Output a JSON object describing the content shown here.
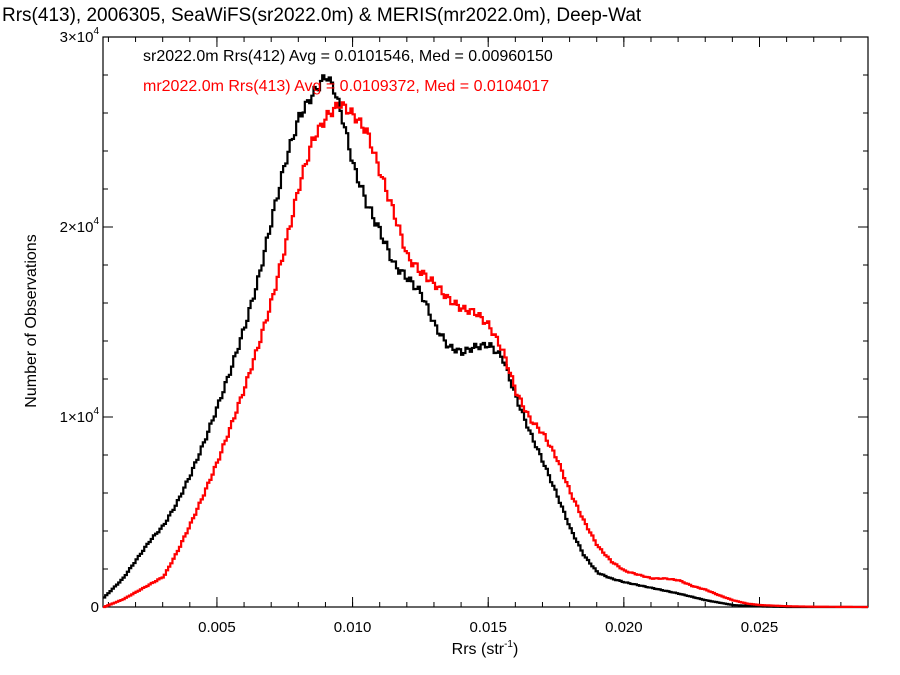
{
  "chart_data": {
    "type": "line",
    "title": "Rrs(413), 2006305, SeaWiFS(sr2022.0m) & MERIS(mr2022.0m), Deep-Wat",
    "xlabel": "Rrs (str",
    "xlabel_sup": "-1",
    "xlabel_close": ")",
    "ylabel": "Number of Observations",
    "xlim": [
      0.0008,
      0.029
    ],
    "ylim": [
      0,
      30000
    ],
    "grid": false,
    "x_ticks": [
      {
        "value": 0.005,
        "label": "0.005"
      },
      {
        "value": 0.01,
        "label": "0.010"
      },
      {
        "value": 0.015,
        "label": "0.015"
      },
      {
        "value": 0.02,
        "label": "0.020"
      },
      {
        "value": 0.025,
        "label": "0.025"
      }
    ],
    "y_ticks": [
      {
        "value": 0,
        "mant": "0",
        "exp": ""
      },
      {
        "value": 10000,
        "mant": "1×10",
        "exp": "4"
      },
      {
        "value": 20000,
        "mant": "2×10",
        "exp": "4"
      },
      {
        "value": 30000,
        "mant": "3×10",
        "exp": "4"
      }
    ],
    "annotations": [
      {
        "text": "sr2022.0m Rrs(412) Avg = 0.0101546, Med = 0.00960150",
        "color": "#000000"
      },
      {
        "text": "mr2022.0m Rrs(413) Avg = 0.0109372, Med = 0.0104017",
        "color": "#ff0000"
      }
    ],
    "series": [
      {
        "color": "#000000",
        "points": [
          [
            0.0008,
            500
          ],
          [
            0.0015,
            1500
          ],
          [
            0.002,
            2500
          ],
          [
            0.0025,
            3500
          ],
          [
            0.003,
            4300
          ],
          [
            0.0035,
            5500
          ],
          [
            0.004,
            7000
          ],
          [
            0.0045,
            8700
          ],
          [
            0.005,
            10600
          ],
          [
            0.0055,
            12600
          ],
          [
            0.006,
            14800
          ],
          [
            0.0065,
            17300
          ],
          [
            0.007,
            20500
          ],
          [
            0.0075,
            23500
          ],
          [
            0.008,
            25800
          ],
          [
            0.0085,
            27000
          ],
          [
            0.009,
            28000
          ],
          [
            0.0093,
            27200
          ],
          [
            0.0096,
            25700
          ],
          [
            0.01,
            23200
          ],
          [
            0.0105,
            21200
          ],
          [
            0.011,
            19700
          ],
          [
            0.0115,
            18000
          ],
          [
            0.012,
            17300
          ],
          [
            0.0125,
            16500
          ],
          [
            0.013,
            14800
          ],
          [
            0.0135,
            13700
          ],
          [
            0.014,
            13400
          ],
          [
            0.0145,
            13700
          ],
          [
            0.015,
            13800
          ],
          [
            0.0155,
            13100
          ],
          [
            0.016,
            11000
          ],
          [
            0.0165,
            9200
          ],
          [
            0.017,
            7600
          ],
          [
            0.0175,
            5900
          ],
          [
            0.018,
            4100
          ],
          [
            0.0185,
            2700
          ],
          [
            0.019,
            1800
          ],
          [
            0.0195,
            1500
          ],
          [
            0.02,
            1300
          ],
          [
            0.021,
            1000
          ],
          [
            0.022,
            700
          ],
          [
            0.023,
            350
          ],
          [
            0.024,
            100
          ],
          [
            0.025,
            30
          ],
          [
            0.026,
            0
          ],
          [
            0.029,
            0
          ]
        ]
      },
      {
        "color": "#ff0000",
        "points": [
          [
            0.0008,
            0
          ],
          [
            0.0015,
            400
          ],
          [
            0.002,
            800
          ],
          [
            0.0025,
            1200
          ],
          [
            0.003,
            1600
          ],
          [
            0.0035,
            2900
          ],
          [
            0.004,
            4400
          ],
          [
            0.0045,
            6000
          ],
          [
            0.005,
            7700
          ],
          [
            0.0055,
            9600
          ],
          [
            0.006,
            11600
          ],
          [
            0.0065,
            13800
          ],
          [
            0.007,
            16200
          ],
          [
            0.0075,
            19100
          ],
          [
            0.008,
            22200
          ],
          [
            0.0085,
            24600
          ],
          [
            0.009,
            25800
          ],
          [
            0.0095,
            26500
          ],
          [
            0.01,
            25900
          ],
          [
            0.0105,
            25000
          ],
          [
            0.011,
            22800
          ],
          [
            0.0115,
            20700
          ],
          [
            0.012,
            18400
          ],
          [
            0.0125,
            17600
          ],
          [
            0.013,
            17000
          ],
          [
            0.0135,
            16200
          ],
          [
            0.014,
            15700
          ],
          [
            0.0145,
            15500
          ],
          [
            0.015,
            14800
          ],
          [
            0.0155,
            13500
          ],
          [
            0.016,
            11300
          ],
          [
            0.0165,
            9900
          ],
          [
            0.017,
            9100
          ],
          [
            0.0175,
            7800
          ],
          [
            0.018,
            6000
          ],
          [
            0.0185,
            4500
          ],
          [
            0.019,
            3200
          ],
          [
            0.0195,
            2400
          ],
          [
            0.02,
            1900
          ],
          [
            0.0205,
            1700
          ],
          [
            0.021,
            1500
          ],
          [
            0.0215,
            1500
          ],
          [
            0.022,
            1400
          ],
          [
            0.0225,
            1100
          ],
          [
            0.023,
            900
          ],
          [
            0.0235,
            600
          ],
          [
            0.024,
            350
          ],
          [
            0.0245,
            180
          ],
          [
            0.025,
            100
          ],
          [
            0.026,
            40
          ],
          [
            0.027,
            15
          ],
          [
            0.029,
            0
          ]
        ]
      }
    ]
  }
}
